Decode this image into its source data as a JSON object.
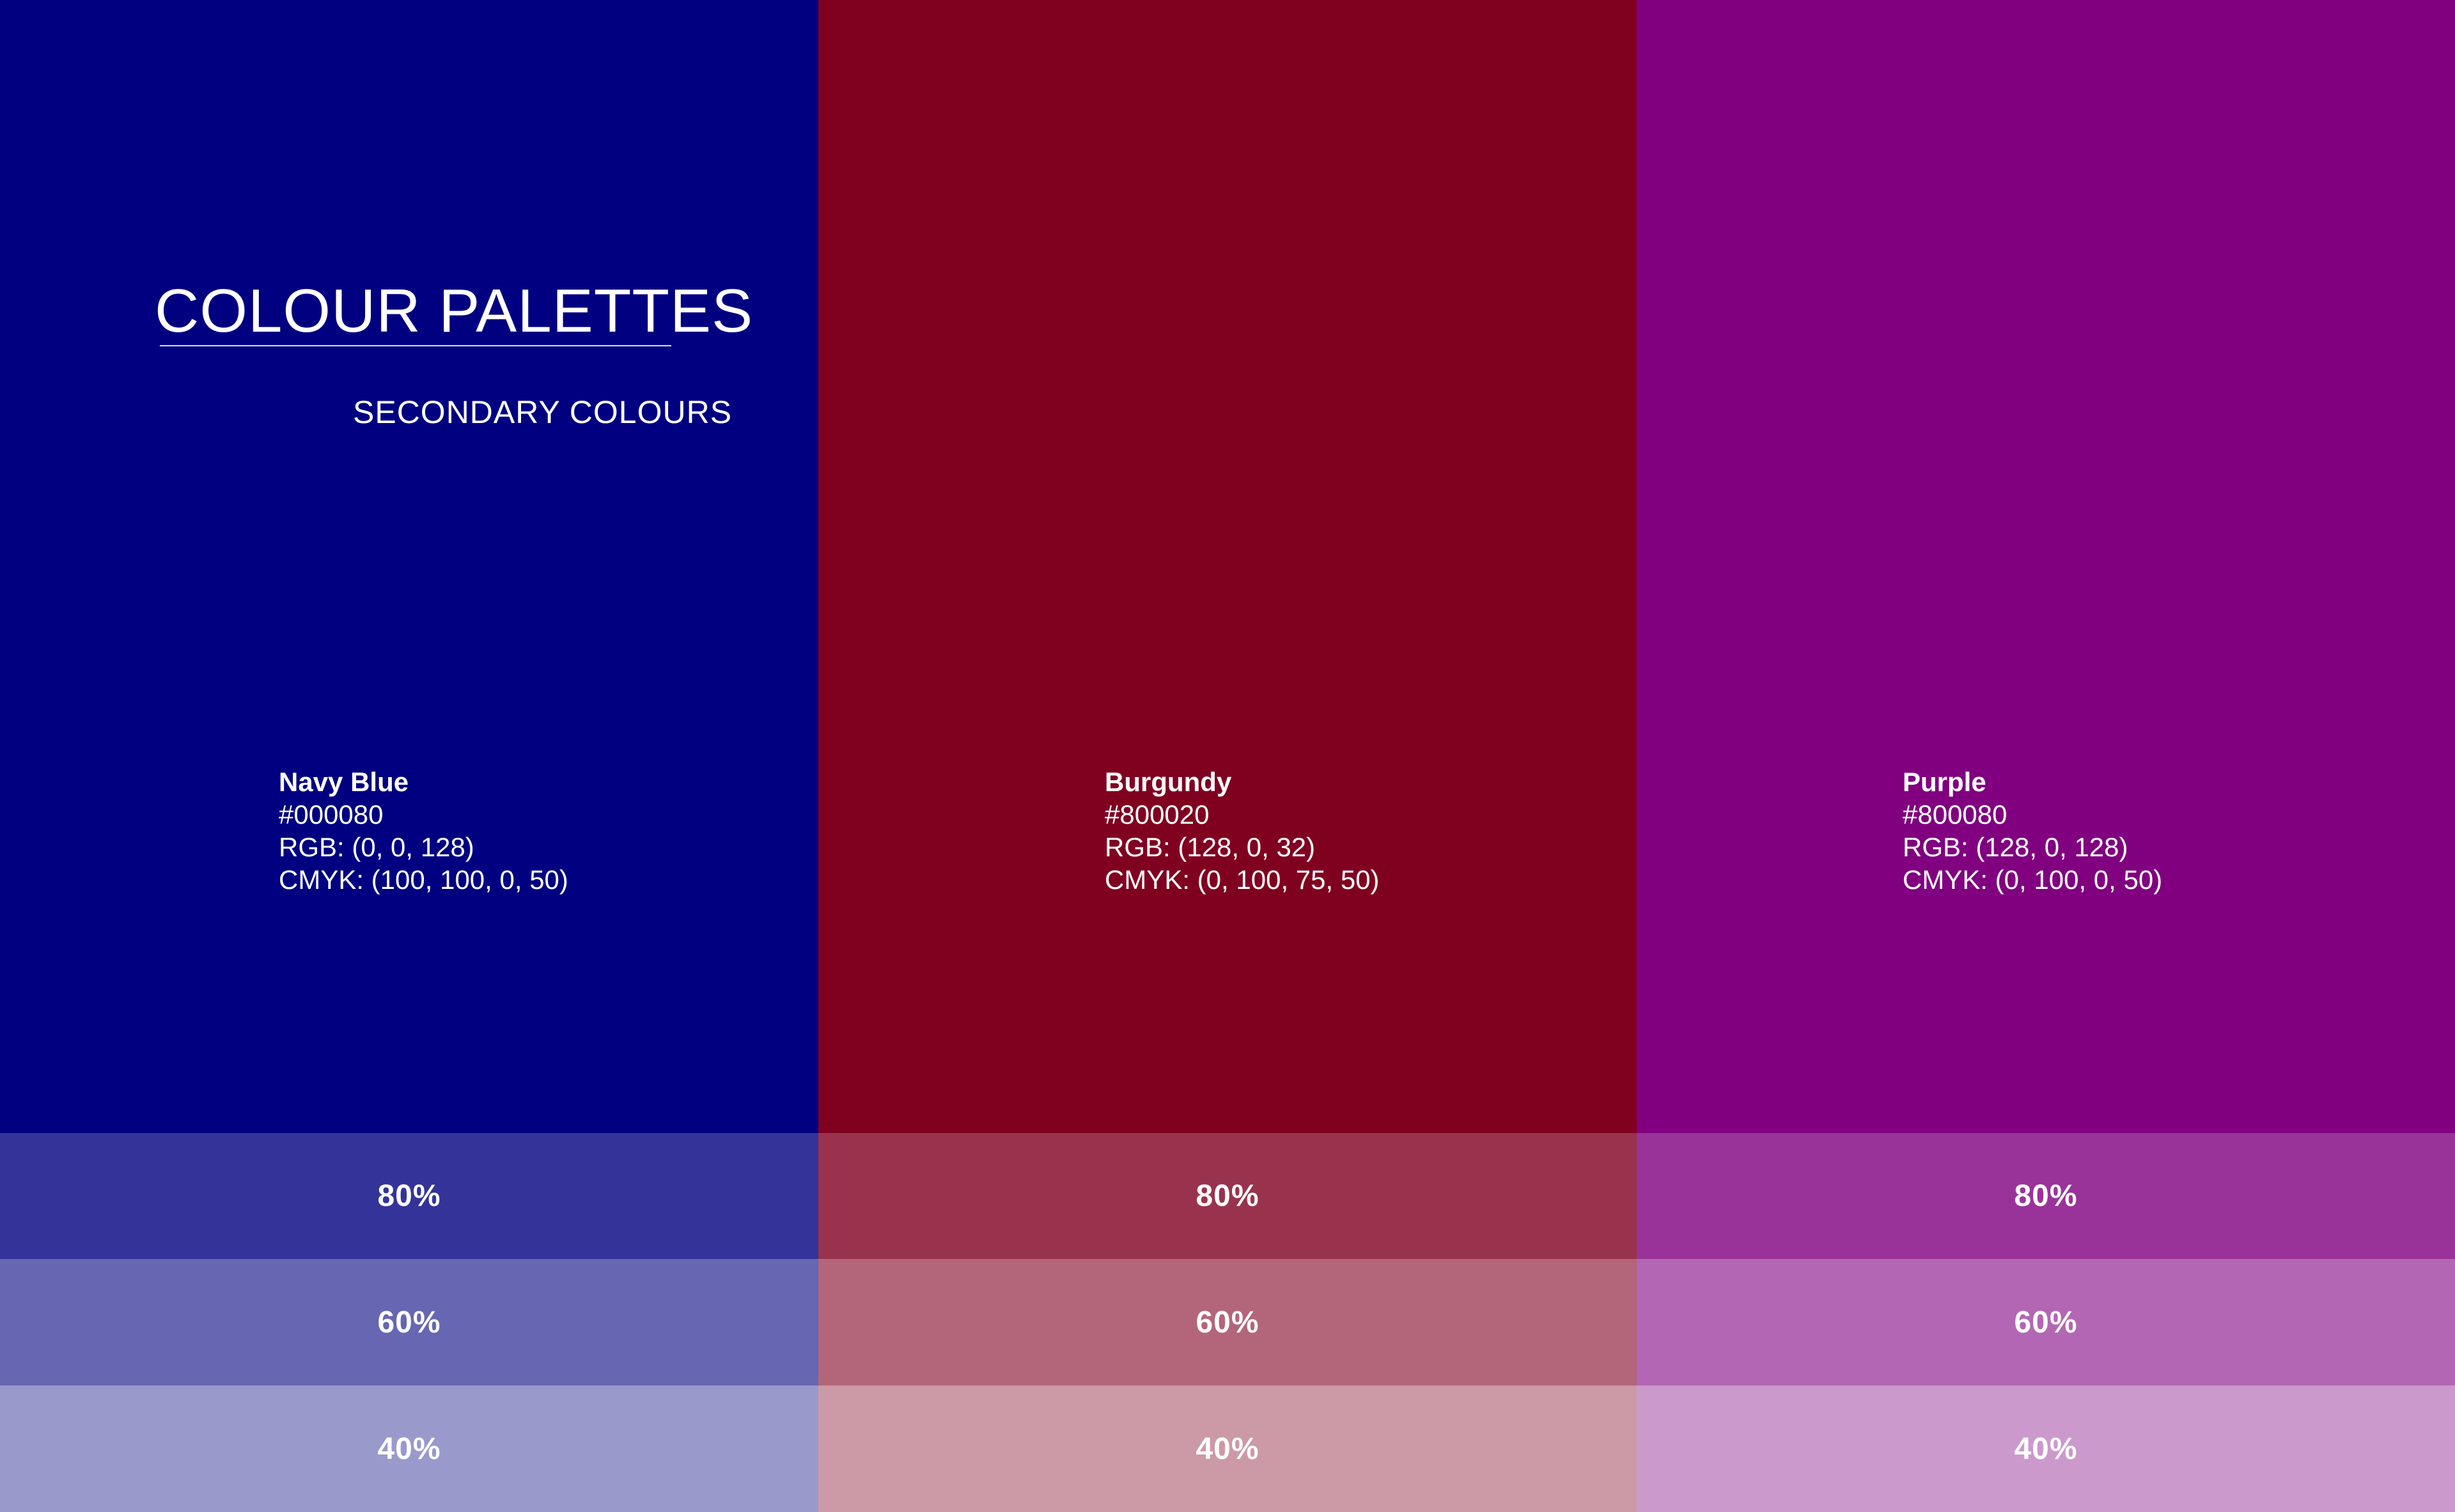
{
  "header": {
    "title": "COLOUR PALETTES",
    "subtitle": "SECONDARY COLOURS"
  },
  "swatches": [
    {
      "name": "Navy Blue",
      "hex": "#000080",
      "rgb": "RGB: (0, 0, 128)",
      "cmyk": "CMYK: (100, 100, 0, 50)",
      "color": "#000080",
      "tints": [
        {
          "label": "80%",
          "color": "#333399"
        },
        {
          "label": "60%",
          "color": "#6666B3"
        },
        {
          "label": "40%",
          "color": "#9999CC"
        }
      ]
    },
    {
      "name": "Burgundy",
      "hex": "#800020",
      "rgb": "RGB: (128, 0, 32)",
      "cmyk": "CMYK: (0, 100, 75, 50)",
      "color": "#800020",
      "tints": [
        {
          "label": "80%",
          "color": "#99334D"
        },
        {
          "label": "60%",
          "color": "#B36679"
        },
        {
          "label": "40%",
          "color": "#CC99A6"
        }
      ]
    },
    {
      "name": "Purple",
      "hex": "#800080",
      "rgb": "RGB: (128, 0, 128)",
      "cmyk": "CMYK: (0, 100, 0, 50)",
      "color": "#800080",
      "tints": [
        {
          "label": "80%",
          "color": "#993399"
        },
        {
          "label": "60%",
          "color": "#B366B3"
        },
        {
          "label": "40%",
          "color": "#CC99CC"
        }
      ]
    }
  ]
}
